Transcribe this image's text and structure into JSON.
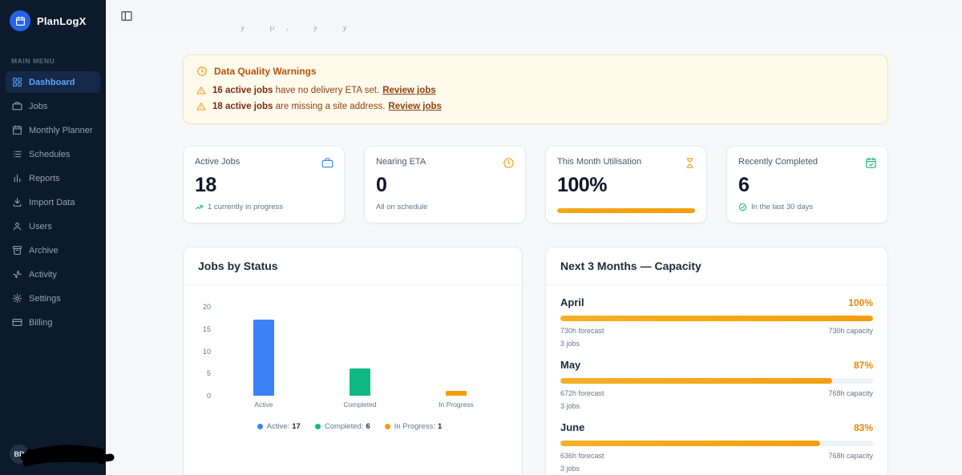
{
  "app": {
    "name": "PlanLogX"
  },
  "topbar": {
    "clipped_text": "y p, y y"
  },
  "sidebar": {
    "section_label": "Main Menu",
    "items": [
      {
        "label": "Dashboard",
        "active": true
      },
      {
        "label": "Jobs"
      },
      {
        "label": "Monthly Planner"
      },
      {
        "label": "Schedules"
      },
      {
        "label": "Reports"
      },
      {
        "label": "Import Data"
      },
      {
        "label": "Users"
      },
      {
        "label": "Archive"
      },
      {
        "label": "Activity"
      },
      {
        "label": "Settings"
      },
      {
        "label": "Billing"
      }
    ],
    "user": {
      "initials": "BD"
    }
  },
  "warnings": {
    "title": "Data Quality Warnings",
    "items": [
      {
        "bold": "16 active jobs",
        "text": " have no delivery ETA set.",
        "link": "Review jobs"
      },
      {
        "bold": "18 active jobs",
        "text": " are missing a site address.",
        "link": "Review jobs"
      }
    ]
  },
  "stats": [
    {
      "label": "Active Jobs",
      "value": "18",
      "sub": "1 currently in progress"
    },
    {
      "label": "Nearing ETA",
      "value": "0",
      "sub": "All on schedule"
    },
    {
      "label": "This Month Utilisation",
      "value": "100%",
      "progress": 100
    },
    {
      "label": "Recently Completed",
      "value": "6",
      "sub": "In the last 30 days"
    }
  ],
  "chart_data": {
    "type": "bar",
    "title": "Jobs by Status",
    "categories": [
      "Active",
      "Completed",
      "In Progress"
    ],
    "values": [
      17,
      6,
      1
    ],
    "colors": [
      "#3b82f6",
      "#10b981",
      "#f59e0b"
    ],
    "ylim": [
      0,
      20
    ],
    "yticks": [
      0,
      5,
      10,
      15,
      20
    ],
    "legend": [
      {
        "label": "Active:",
        "value": "17",
        "color": "#3b82f6"
      },
      {
        "label": "Completed:",
        "value": "6",
        "color": "#10b981"
      },
      {
        "label": "In Progress:",
        "value": "1",
        "color": "#f59e0b"
      }
    ]
  },
  "capacity": {
    "title": "Next 3 Months — Capacity",
    "months": [
      {
        "name": "April",
        "percent": "100%",
        "pct": 100,
        "forecast": "730h forecast",
        "capacity": "730h capacity",
        "jobs": "3 jobs"
      },
      {
        "name": "May",
        "percent": "87%",
        "pct": 87,
        "forecast": "672h forecast",
        "capacity": "768h capacity",
        "jobs": "3 jobs"
      },
      {
        "name": "June",
        "percent": "83%",
        "pct": 83,
        "forecast": "636h forecast",
        "capacity": "768h capacity",
        "jobs": "3 jobs"
      }
    ]
  },
  "colors": {
    "accent_blue": "#3b82f6",
    "green": "#10b981",
    "orange": "#f59e0b",
    "sidebar_bg": "#0d1a2b",
    "warning_bg": "#fefbec"
  }
}
